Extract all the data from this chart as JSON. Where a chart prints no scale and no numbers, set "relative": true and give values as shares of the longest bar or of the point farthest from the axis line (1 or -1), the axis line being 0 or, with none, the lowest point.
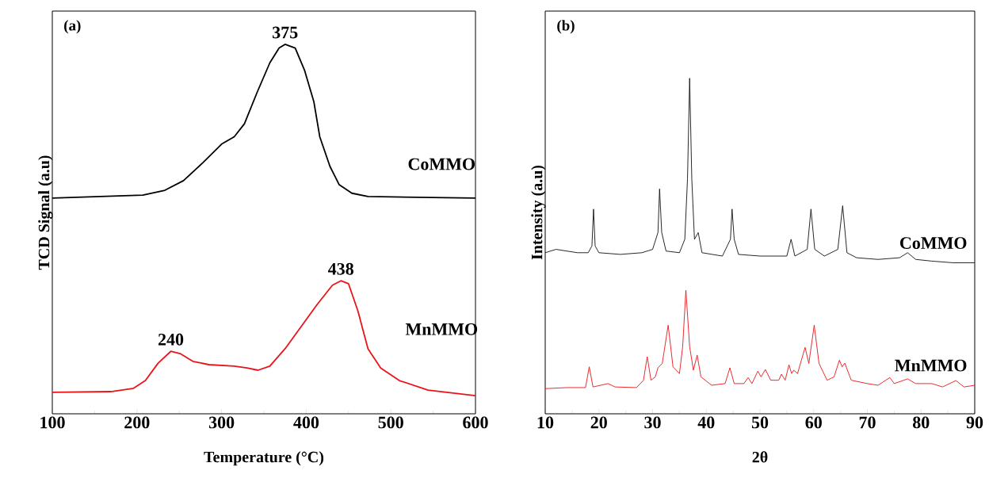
{
  "chart_data": [
    {
      "type": "line",
      "xlabel": "Temperature (°C)",
      "ylabel": "TCD Signal (a.u)",
      "relative": true,
      "xlim": [
        100,
        600
      ],
      "xticks": [
        100,
        200,
        300,
        400,
        500,
        600
      ],
      "annotations": [
        "(a)",
        {
          "text": "375",
          "x": 375,
          "y": 1.0
        },
        {
          "text": "438",
          "x": 441,
          "y": 0.36
        },
        {
          "text": "240",
          "x": 240,
          "y": 0.169
        }
      ],
      "series": [
        {
          "name": "CoMMO",
          "color": "#000000",
          "x": [
            100,
            207,
            233,
            255,
            278,
            300,
            315,
            327,
            342,
            357,
            368,
            375,
            387,
            398,
            409,
            416,
            428,
            439,
            454,
            473,
            600
          ],
          "values": [
            0.584,
            0.592,
            0.605,
            0.631,
            0.68,
            0.73,
            0.75,
            0.785,
            0.87,
            0.95,
            0.99,
            1.0,
            0.99,
            0.93,
            0.845,
            0.75,
            0.67,
            0.62,
            0.597,
            0.588,
            0.584
          ]
        },
        {
          "name": "MnMMO",
          "color": "#e8141a",
          "x": [
            100,
            169,
            196,
            210,
            225,
            240,
            251,
            266,
            285,
            315,
            330,
            343,
            357,
            375,
            394,
            413,
            431,
            441,
            450,
            461,
            473,
            488,
            510,
            544,
            600
          ],
          "values": [
            0.058,
            0.06,
            0.069,
            0.09,
            0.137,
            0.169,
            0.163,
            0.142,
            0.133,
            0.129,
            0.124,
            0.118,
            0.129,
            0.176,
            0.236,
            0.296,
            0.348,
            0.36,
            0.352,
            0.279,
            0.176,
            0.124,
            0.09,
            0.064,
            0.049
          ]
        }
      ]
    },
    {
      "type": "line",
      "xlabel": "2θ",
      "ylabel": "Intensity (a.u)",
      "relative": true,
      "xlim": [
        10,
        90
      ],
      "xticks": [
        10,
        20,
        30,
        40,
        50,
        60,
        70,
        80,
        90
      ],
      "annotations": [
        "(b)"
      ],
      "series": [
        {
          "name": "CoMMO",
          "color": "#111111",
          "x": [
            10,
            12,
            14,
            16,
            18,
            18.7,
            19,
            19.3,
            20,
            24,
            28,
            30,
            31,
            31.3,
            31.7,
            32.5,
            35,
            36,
            36.5,
            36.9,
            37.3,
            37.8,
            38.5,
            39.2,
            43,
            44.5,
            44.8,
            45.2,
            46,
            50,
            55,
            55.8,
            56.5,
            58.8,
            59.5,
            60.2,
            62,
            64.5,
            65.4,
            66.2,
            68,
            72,
            76,
            77.5,
            79,
            82,
            86,
            90
          ],
          "values": [
            0.48,
            0.49,
            0.485,
            0.48,
            0.48,
            0.5,
            0.61,
            0.5,
            0.48,
            0.475,
            0.48,
            0.49,
            0.54,
            0.67,
            0.54,
            0.485,
            0.48,
            0.52,
            0.7,
            1.0,
            0.7,
            0.52,
            0.54,
            0.48,
            0.47,
            0.52,
            0.61,
            0.52,
            0.475,
            0.47,
            0.47,
            0.52,
            0.47,
            0.49,
            0.61,
            0.49,
            0.47,
            0.49,
            0.62,
            0.48,
            0.465,
            0.46,
            0.465,
            0.48,
            0.46,
            0.455,
            0.45,
            0.45
          ]
        },
        {
          "name": "MnMMO",
          "color": "#e8141a",
          "x": [
            10,
            14,
            17.5,
            18.2,
            18.9,
            21.7,
            23,
            27,
            28.3,
            29,
            29.7,
            30.5,
            31,
            31.8,
            32.9,
            33.8,
            35,
            35.6,
            36.2,
            36.9,
            37.6,
            38.3,
            39,
            41,
            43.5,
            44.4,
            45.2,
            47,
            47.8,
            48.5,
            49.6,
            50.2,
            51,
            52,
            53.5,
            54,
            54.7,
            55.4,
            55.9,
            56.3,
            57,
            58.4,
            59.1,
            60.1,
            61,
            62.5,
            63.8,
            64.8,
            65.3,
            65.8,
            67,
            70,
            72,
            74.2,
            75,
            77.5,
            79,
            82,
            84,
            86.5,
            88,
            90
          ],
          "values": [
            0.075,
            0.078,
            0.078,
            0.14,
            0.08,
            0.09,
            0.08,
            0.078,
            0.1,
            0.17,
            0.1,
            0.11,
            0.137,
            0.15,
            0.264,
            0.14,
            0.12,
            0.2,
            0.368,
            0.2,
            0.13,
            0.175,
            0.11,
            0.085,
            0.09,
            0.137,
            0.09,
            0.09,
            0.108,
            0.09,
            0.127,
            0.11,
            0.132,
            0.1,
            0.1,
            0.118,
            0.1,
            0.146,
            0.12,
            0.13,
            0.12,
            0.198,
            0.15,
            0.264,
            0.15,
            0.1,
            0.11,
            0.16,
            0.14,
            0.151,
            0.1,
            0.09,
            0.085,
            0.108,
            0.09,
            0.104,
            0.09,
            0.09,
            0.08,
            0.099,
            0.08,
            0.085
          ]
        }
      ]
    }
  ]
}
